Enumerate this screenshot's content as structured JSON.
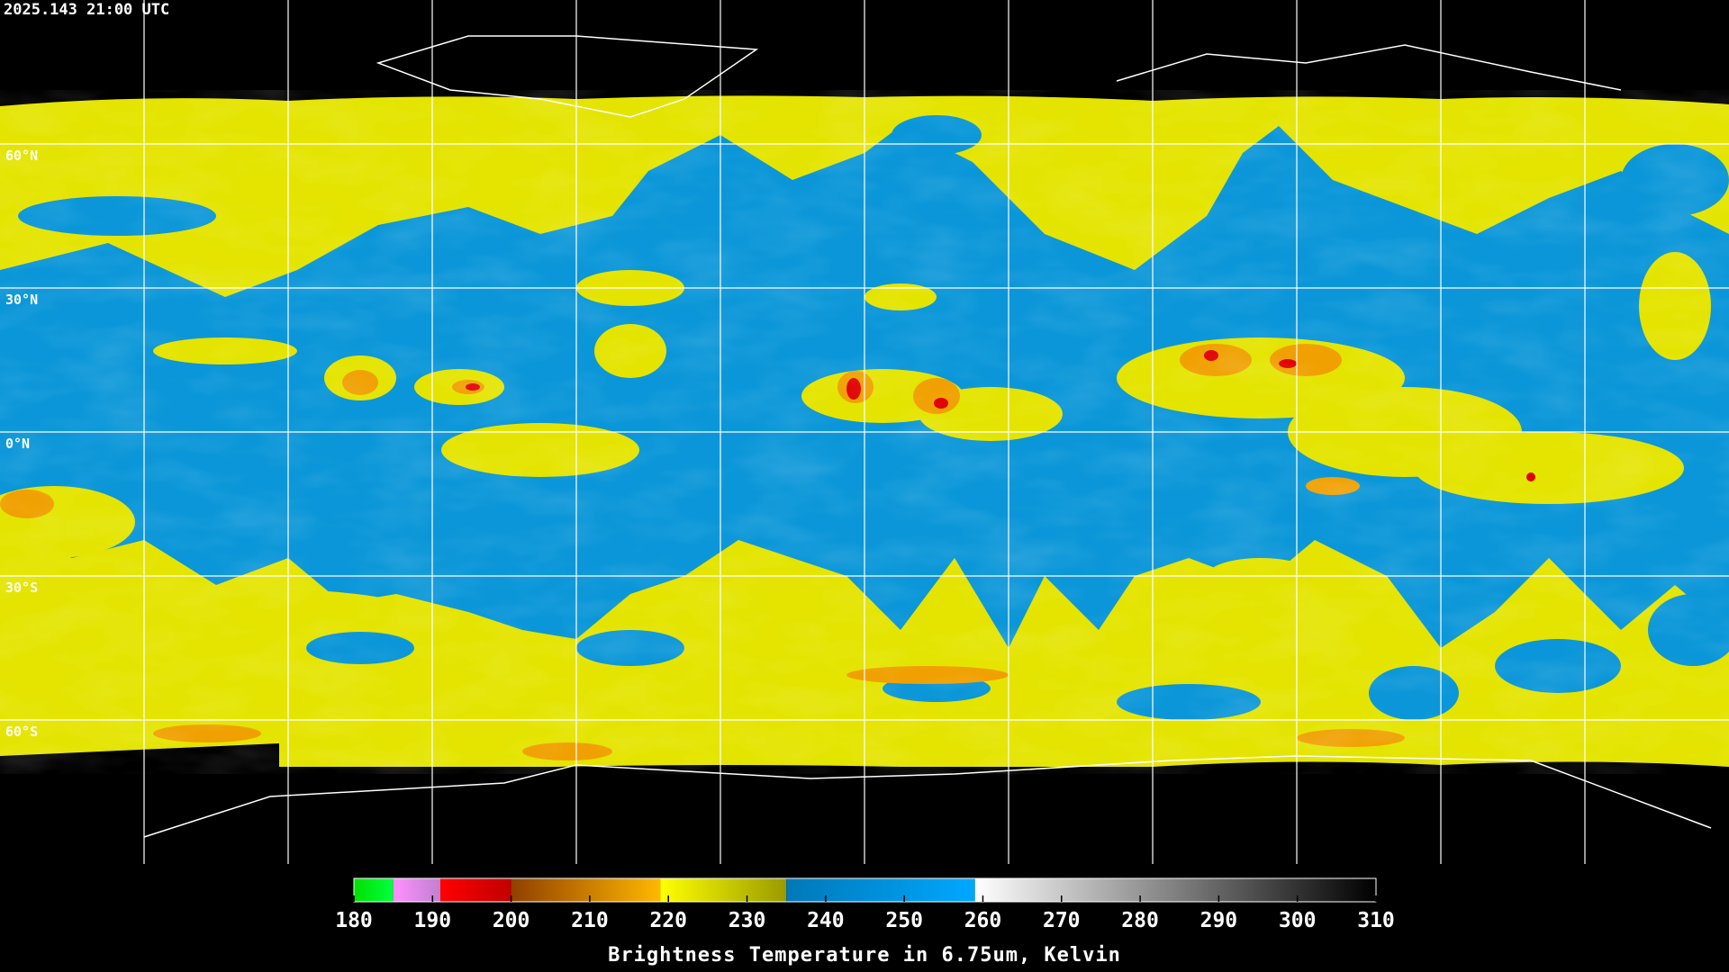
{
  "header": {
    "timestamp": "2025.143 21:00 UTC"
  },
  "map": {
    "projection": "equirectangular",
    "lat_lines": [
      {
        "value": 60,
        "label": "60°N"
      },
      {
        "value": 30,
        "label": "30°N"
      },
      {
        "value": 0,
        "label": "0°N"
      },
      {
        "value": -30,
        "label": "30°S"
      },
      {
        "value": -60,
        "label": "60°S"
      }
    ],
    "lon_lines": [
      -150,
      -120,
      -90,
      -60,
      -30,
      0,
      30,
      60,
      90,
      120,
      150
    ]
  },
  "colorbar": {
    "title": "Brightness Temperature in 6.75um, Kelvin",
    "range": [
      180,
      310
    ],
    "ticks": [
      180,
      190,
      200,
      210,
      220,
      230,
      240,
      250,
      260,
      270,
      280,
      290,
      300,
      310
    ],
    "segments": [
      {
        "from": 180,
        "to": 185,
        "colors": [
          "#00e000",
          "#00ff40"
        ]
      },
      {
        "from": 185,
        "to": 191,
        "colors": [
          "#ff90ff",
          "#c080d0"
        ]
      },
      {
        "from": 191,
        "to": 200,
        "colors": [
          "#ff0000",
          "#c00000"
        ]
      },
      {
        "from": 200,
        "to": 219,
        "colors": [
          "#904000",
          "#ffb800"
        ]
      },
      {
        "from": 219,
        "to": 235,
        "colors": [
          "#ffff00",
          "#9a9a00"
        ]
      },
      {
        "from": 235,
        "to": 259,
        "colors": [
          "#0078b8",
          "#00a8ff"
        ]
      },
      {
        "from": 259,
        "to": 310,
        "colors": [
          "#ffffff",
          "#000000"
        ]
      }
    ]
  }
}
